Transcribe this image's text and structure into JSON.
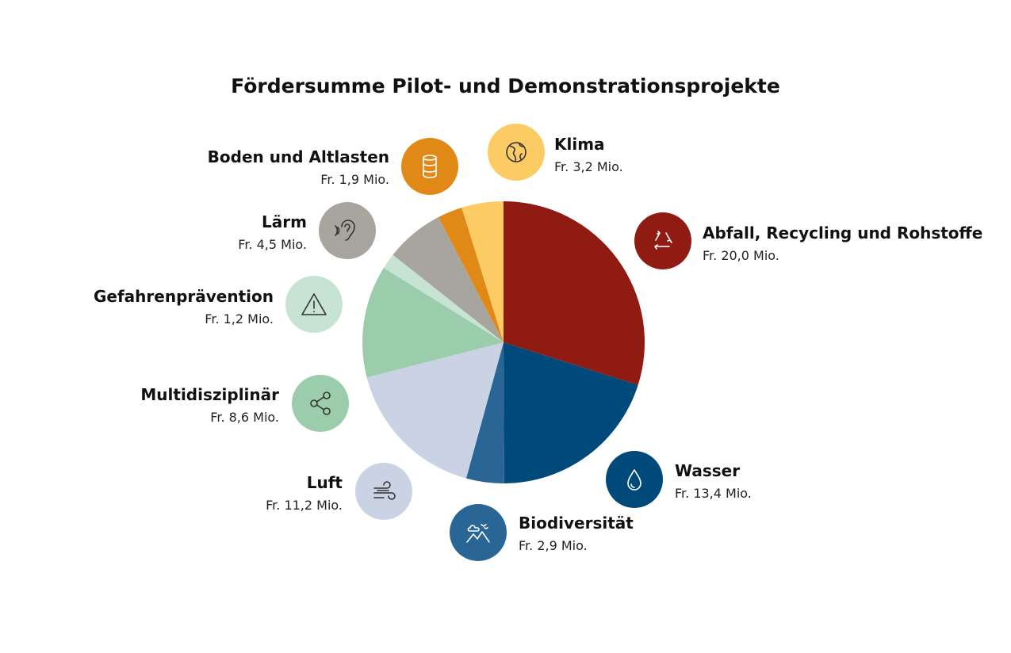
{
  "chart_data": {
    "type": "pie",
    "title": "Fördersumme Pilot- und Demonstrationsprojekte",
    "unit": "Mio. Fr.",
    "slices": [
      {
        "label": "Abfall, Recycling und Rohstoffe",
        "value": 20.0,
        "value_text": "Fr. 20,0 Mio.",
        "color": "#8f1b12",
        "icon": "recycle-icon",
        "icon_stroke": "#ffffff"
      },
      {
        "label": "Wasser",
        "value": 13.4,
        "value_text": "Fr. 13,4 Mio.",
        "color": "#004a7b",
        "icon": "water-drop-icon",
        "icon_stroke": "#ffffff"
      },
      {
        "label": "Biodiversität",
        "value": 2.9,
        "value_text": "Fr. 2,9 Mio.",
        "color": "#2a6695",
        "icon": "landscape-icon",
        "icon_stroke": "#ffffff"
      },
      {
        "label": "Luft",
        "value": 11.2,
        "value_text": "Fr. 11,2 Mio.",
        "color": "#c9d3e3",
        "icon": "wind-icon",
        "icon_stroke": "#333333"
      },
      {
        "label": "Multidisziplinär",
        "value": 8.6,
        "value_text": "Fr. 8,6 Mio.",
        "color": "#9bcdad",
        "icon": "share-icon",
        "icon_stroke": "#333333"
      },
      {
        "label": "Gefahrenprävention",
        "value": 1.2,
        "value_text": "Fr. 1,2 Mio.",
        "color": "#c6e3d3",
        "icon": "warning-icon",
        "icon_stroke": "#333333"
      },
      {
        "label": "Lärm",
        "value": 4.5,
        "value_text": "Fr. 4,5 Mio.",
        "color": "#a8a59f",
        "icon": "ear-icon",
        "icon_stroke": "#333333"
      },
      {
        "label": "Boden und Altlasten",
        "value": 1.9,
        "value_text": "Fr. 1,9 Mio.",
        "color": "#e08916",
        "icon": "barrel-icon",
        "icon_stroke": "#ffffff"
      },
      {
        "label": "Klima",
        "value": 3.2,
        "value_text": "Fr. 3,2 Mio.",
        "color": "#fdcb63",
        "icon": "globe-icon",
        "icon_stroke": "#333333"
      }
    ],
    "start_angle": "top",
    "direction": "clockwise",
    "legend": "none"
  }
}
